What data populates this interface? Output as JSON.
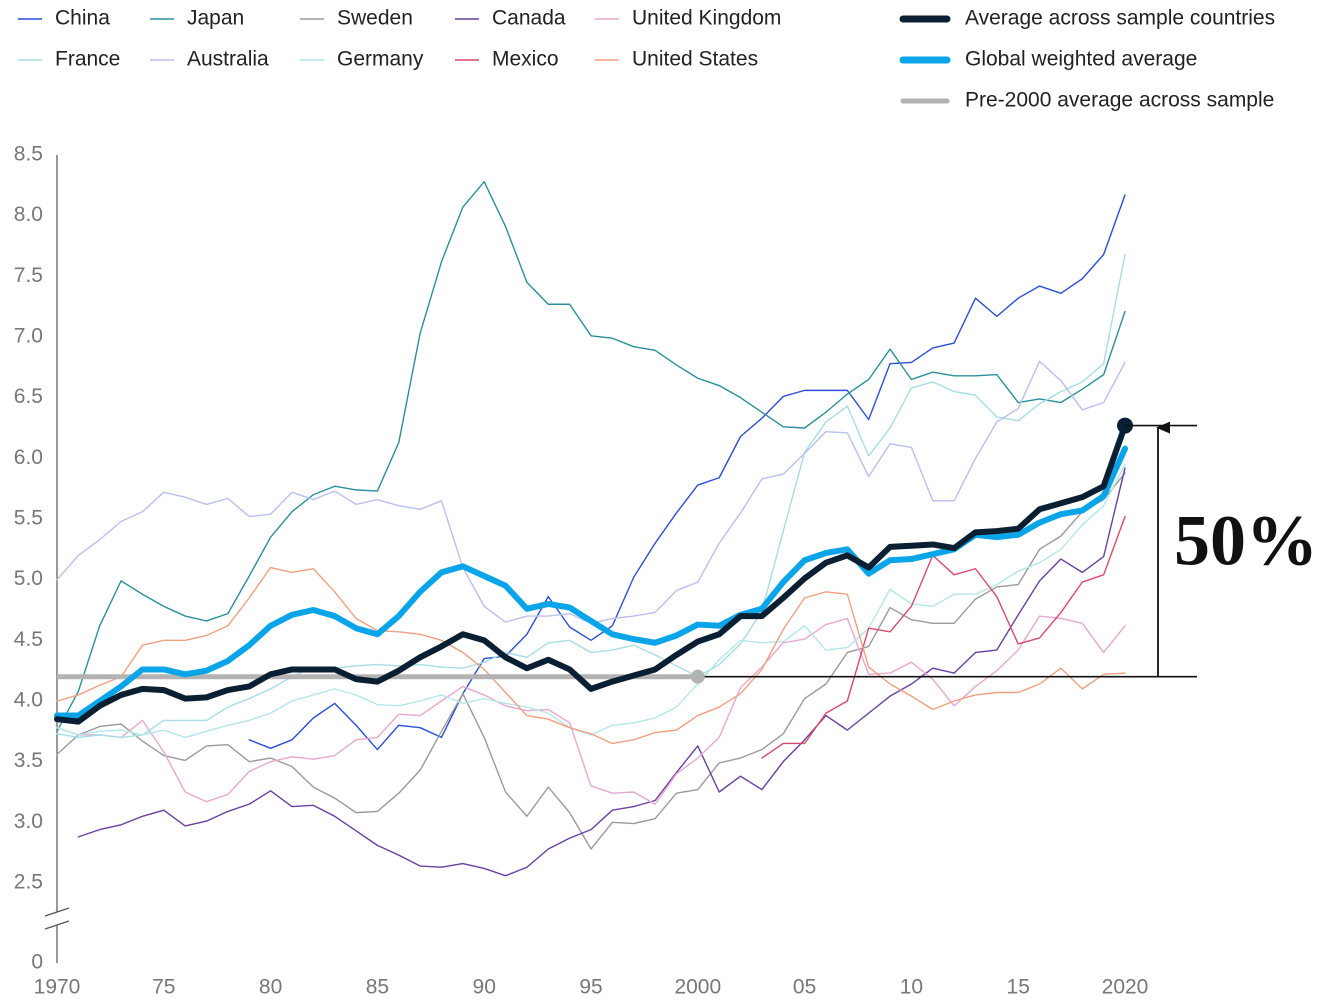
{
  "chart_data": {
    "type": "line",
    "x": [
      1970,
      1971,
      1972,
      1973,
      1974,
      1975,
      1976,
      1977,
      1978,
      1979,
      1980,
      1981,
      1982,
      1983,
      1984,
      1985,
      1986,
      1987,
      1988,
      1989,
      1990,
      1991,
      1992,
      1993,
      1994,
      1995,
      1996,
      1997,
      1998,
      1999,
      2000,
      2001,
      2002,
      2003,
      2004,
      2005,
      2006,
      2007,
      2008,
      2009,
      2010,
      2011,
      2012,
      2013,
      2014,
      2015,
      2016,
      2017,
      2018,
      2019,
      2020
    ],
    "series": [
      {
        "name": "China",
        "color": "#2a4fd6",
        "values": [
          null,
          null,
          null,
          null,
          null,
          null,
          null,
          null,
          null,
          3.68,
          3.61,
          3.68,
          3.86,
          3.98,
          3.8,
          3.6,
          3.8,
          3.78,
          3.7,
          4.06,
          4.35,
          4.37,
          4.55,
          4.86,
          4.61,
          4.5,
          4.62,
          5.02,
          5.3,
          5.55,
          5.78,
          5.84,
          6.18,
          6.33,
          6.51,
          6.56,
          6.56,
          6.56,
          6.32,
          6.78,
          6.79,
          6.91,
          6.95,
          7.32,
          7.17,
          7.32,
          7.42,
          7.36,
          7.48,
          7.68,
          8.17
        ]
      },
      {
        "name": "Japan",
        "color": "#2a8f9a",
        "values": [
          3.75,
          4.08,
          4.62,
          4.99,
          4.88,
          4.78,
          4.7,
          4.66,
          4.72,
          5.03,
          5.35,
          5.56,
          5.7,
          5.77,
          5.74,
          5.73,
          6.13,
          7.03,
          7.62,
          8.07,
          8.28,
          7.91,
          7.45,
          7.27,
          7.27,
          7.01,
          6.99,
          6.92,
          6.89,
          6.77,
          6.66,
          6.6,
          6.5,
          6.38,
          6.26,
          6.25,
          6.38,
          6.53,
          6.65,
          6.9,
          6.65,
          6.71,
          6.68,
          6.68,
          6.69,
          6.46,
          6.49,
          6.46,
          6.57,
          6.69,
          7.21
        ]
      },
      {
        "name": "Sweden",
        "color": "#9a9a9a",
        "values": [
          3.56,
          3.72,
          3.79,
          3.81,
          3.67,
          3.55,
          3.51,
          3.63,
          3.64,
          3.5,
          3.53,
          3.46,
          3.29,
          3.2,
          3.08,
          3.09,
          3.24,
          3.43,
          3.75,
          4.06,
          3.7,
          3.25,
          3.05,
          3.29,
          3.08,
          2.78,
          3.0,
          2.99,
          3.03,
          3.24,
          3.27,
          3.49,
          3.53,
          3.6,
          3.73,
          4.02,
          4.14,
          4.4,
          4.45,
          4.77,
          4.67,
          4.64,
          4.64,
          4.84,
          4.94,
          4.96,
          5.25,
          5.36,
          5.56,
          5.66,
          5.88
        ]
      },
      {
        "name": "Canada",
        "color": "#6a3fa0",
        "values": [
          null,
          2.88,
          2.94,
          2.98,
          3.05,
          3.1,
          2.97,
          3.01,
          3.09,
          3.15,
          3.26,
          3.13,
          3.14,
          3.05,
          2.93,
          2.81,
          2.73,
          2.64,
          2.63,
          2.66,
          2.62,
          2.56,
          2.63,
          2.78,
          2.87,
          2.94,
          3.1,
          3.13,
          3.18,
          3.41,
          3.63,
          3.25,
          3.38,
          3.27,
          3.5,
          3.68,
          3.88,
          3.76,
          3.9,
          4.04,
          4.14,
          4.27,
          4.23,
          4.4,
          4.42,
          4.71,
          4.99,
          5.17,
          5.06,
          5.19,
          5.92
        ]
      },
      {
        "name": "United Kingdom",
        "color": "#e6a8cf",
        "values": [
          3.78,
          3.72,
          3.72,
          3.7,
          3.84,
          3.58,
          3.25,
          3.17,
          3.23,
          3.42,
          3.5,
          3.54,
          3.52,
          3.55,
          3.68,
          3.7,
          3.89,
          3.88,
          4.0,
          4.12,
          4.05,
          3.96,
          3.92,
          3.93,
          3.82,
          3.3,
          3.24,
          3.25,
          3.15,
          3.4,
          3.53,
          3.7,
          4.11,
          4.28,
          4.48,
          4.51,
          4.63,
          4.68,
          4.22,
          4.23,
          4.32,
          4.18,
          3.96,
          4.12,
          4.25,
          4.42,
          4.7,
          4.68,
          4.64,
          4.4,
          4.62
        ]
      },
      {
        "name": "France",
        "color": "#a6dde6",
        "values": [
          3.73,
          3.7,
          3.72,
          3.7,
          3.72,
          3.84,
          3.84,
          3.84,
          3.95,
          4.02,
          4.1,
          4.2,
          4.28,
          4.27,
          4.29,
          4.3,
          4.29,
          4.3,
          4.28,
          4.27,
          4.32,
          4.4,
          4.36,
          4.48,
          4.5,
          4.4,
          4.42,
          4.46,
          4.38,
          4.29,
          4.2,
          4.3,
          4.47,
          4.74,
          5.4,
          6.05,
          6.3,
          6.43,
          6.02,
          6.25,
          6.58,
          6.63,
          6.55,
          6.52,
          6.34,
          6.31,
          6.45,
          6.55,
          6.63,
          6.78,
          7.68
        ]
      },
      {
        "name": "Australia",
        "color": "#b8c0f0",
        "values": [
          5.0,
          5.2,
          5.33,
          5.48,
          5.56,
          5.72,
          5.68,
          5.62,
          5.67,
          5.52,
          5.54,
          5.72,
          5.66,
          5.73,
          5.62,
          5.66,
          5.61,
          5.58,
          5.65,
          5.1,
          4.78,
          4.65,
          4.7,
          4.7,
          4.72,
          4.64,
          4.68,
          4.7,
          4.73,
          4.91,
          4.98,
          5.3,
          5.55,
          5.83,
          5.87,
          6.04,
          6.22,
          6.21,
          5.85,
          6.12,
          6.09,
          5.65,
          5.65,
          6.0,
          6.3,
          6.41,
          6.8,
          6.64,
          6.4,
          6.46,
          6.79
        ]
      },
      {
        "name": "Germany",
        "color": "#b4e6ec",
        "values": [
          3.78,
          3.72,
          3.75,
          3.76,
          3.72,
          3.76,
          3.7,
          3.75,
          3.8,
          3.84,
          3.9,
          4.0,
          4.05,
          4.1,
          4.05,
          3.97,
          3.96,
          4.0,
          4.05,
          3.98,
          4.02,
          3.98,
          3.95,
          3.9,
          3.78,
          3.72,
          3.8,
          3.82,
          3.86,
          3.95,
          4.14,
          4.34,
          4.5,
          4.48,
          4.49,
          4.62,
          4.42,
          4.44,
          4.6,
          4.92,
          4.8,
          4.78,
          4.88,
          4.88,
          4.96,
          5.07,
          5.14,
          5.25,
          5.45,
          5.61,
          5.95
        ]
      },
      {
        "name": "Mexico",
        "color": "#d84a6a",
        "values": [
          null,
          null,
          null,
          null,
          null,
          null,
          null,
          null,
          null,
          null,
          null,
          null,
          null,
          null,
          null,
          null,
          null,
          null,
          null,
          null,
          null,
          null,
          null,
          null,
          null,
          null,
          null,
          null,
          null,
          null,
          null,
          null,
          null,
          3.53,
          3.65,
          3.65,
          3.9,
          4.0,
          4.6,
          4.57,
          4.78,
          5.2,
          5.04,
          5.09,
          4.86,
          4.47,
          4.52,
          4.73,
          4.98,
          5.04,
          5.52
        ]
      },
      {
        "name": "United States",
        "color": "#f0a080",
        "values": [
          4.0,
          4.05,
          4.13,
          4.2,
          4.46,
          4.5,
          4.5,
          4.54,
          4.62,
          4.85,
          5.1,
          5.06,
          5.09,
          4.9,
          4.68,
          4.58,
          4.57,
          4.55,
          4.5,
          4.4,
          4.26,
          4.07,
          3.88,
          3.85,
          3.78,
          3.73,
          3.65,
          3.68,
          3.74,
          3.76,
          3.88,
          3.95,
          4.06,
          4.26,
          4.59,
          4.85,
          4.9,
          4.88,
          4.28,
          4.14,
          4.04,
          3.93,
          4.0,
          4.05,
          4.07,
          4.07,
          4.14,
          4.27,
          4.1,
          4.22,
          4.23
        ]
      }
    ],
    "average_series": [
      {
        "name": "Average across sample countries",
        "color": "#0b1f33",
        "values": [
          3.85,
          3.83,
          3.96,
          4.05,
          4.1,
          4.09,
          4.02,
          4.03,
          4.09,
          4.12,
          4.22,
          4.26,
          4.26,
          4.26,
          4.18,
          4.16,
          4.25,
          4.36,
          4.45,
          4.55,
          4.5,
          4.36,
          4.27,
          4.34,
          4.26,
          4.1,
          4.16,
          4.21,
          4.26,
          4.38,
          4.49,
          4.55,
          4.7,
          4.7,
          4.85,
          5.01,
          5.14,
          5.2,
          5.1,
          5.27,
          5.28,
          5.29,
          5.26,
          5.39,
          5.4,
          5.42,
          5.58,
          5.63,
          5.68,
          5.77,
          6.27
        ]
      },
      {
        "name": "Global weighted average",
        "color": "#0aa5e8",
        "values": [
          3.88,
          3.88,
          4.0,
          4.12,
          4.26,
          4.26,
          4.22,
          4.25,
          4.33,
          4.46,
          4.62,
          4.71,
          4.75,
          4.7,
          4.6,
          4.55,
          4.7,
          4.9,
          5.06,
          5.11,
          5.03,
          4.95,
          4.76,
          4.8,
          4.77,
          4.66,
          4.55,
          4.51,
          4.48,
          4.54,
          4.63,
          4.62,
          4.71,
          4.76,
          4.98,
          5.16,
          5.22,
          5.25,
          5.05,
          5.16,
          5.17,
          5.21,
          5.25,
          5.37,
          5.35,
          5.37,
          5.47,
          5.54,
          5.57,
          5.69,
          6.08
        ]
      }
    ],
    "reference": {
      "name": "Pre-2000 average across sample",
      "color": "#b3b3b3",
      "value": 4.2,
      "from": 1970,
      "to": 2000
    },
    "annotation": "50%",
    "xlim": [
      1970,
      2020
    ],
    "xticks": [
      1970,
      {
        "value": 1975,
        "label": "75"
      },
      {
        "value": 1980,
        "label": "80"
      },
      {
        "value": 1985,
        "label": "85"
      },
      {
        "value": 1990,
        "label": "90"
      },
      {
        "value": 1995,
        "label": "95"
      },
      2000,
      {
        "value": 2005,
        "label": "05"
      },
      {
        "value": 2010,
        "label": "10"
      },
      {
        "value": 2015,
        "label": "15"
      },
      2020
    ],
    "ylim": [
      2.5,
      8.5
    ],
    "yticks": [
      0,
      2.5,
      {
        "value": 3,
        "label": "3.0"
      },
      3.5,
      {
        "value": 4,
        "label": "4.0"
      },
      4.5,
      {
        "value": 5,
        "label": "5.0"
      },
      5.5,
      {
        "value": 6,
        "label": "6.0"
      },
      6.5,
      {
        "value": 7,
        "label": "7.0"
      },
      7.5,
      {
        "value": 8,
        "label": "8.0"
      },
      8.5
    ],
    "axis_break": true
  }
}
